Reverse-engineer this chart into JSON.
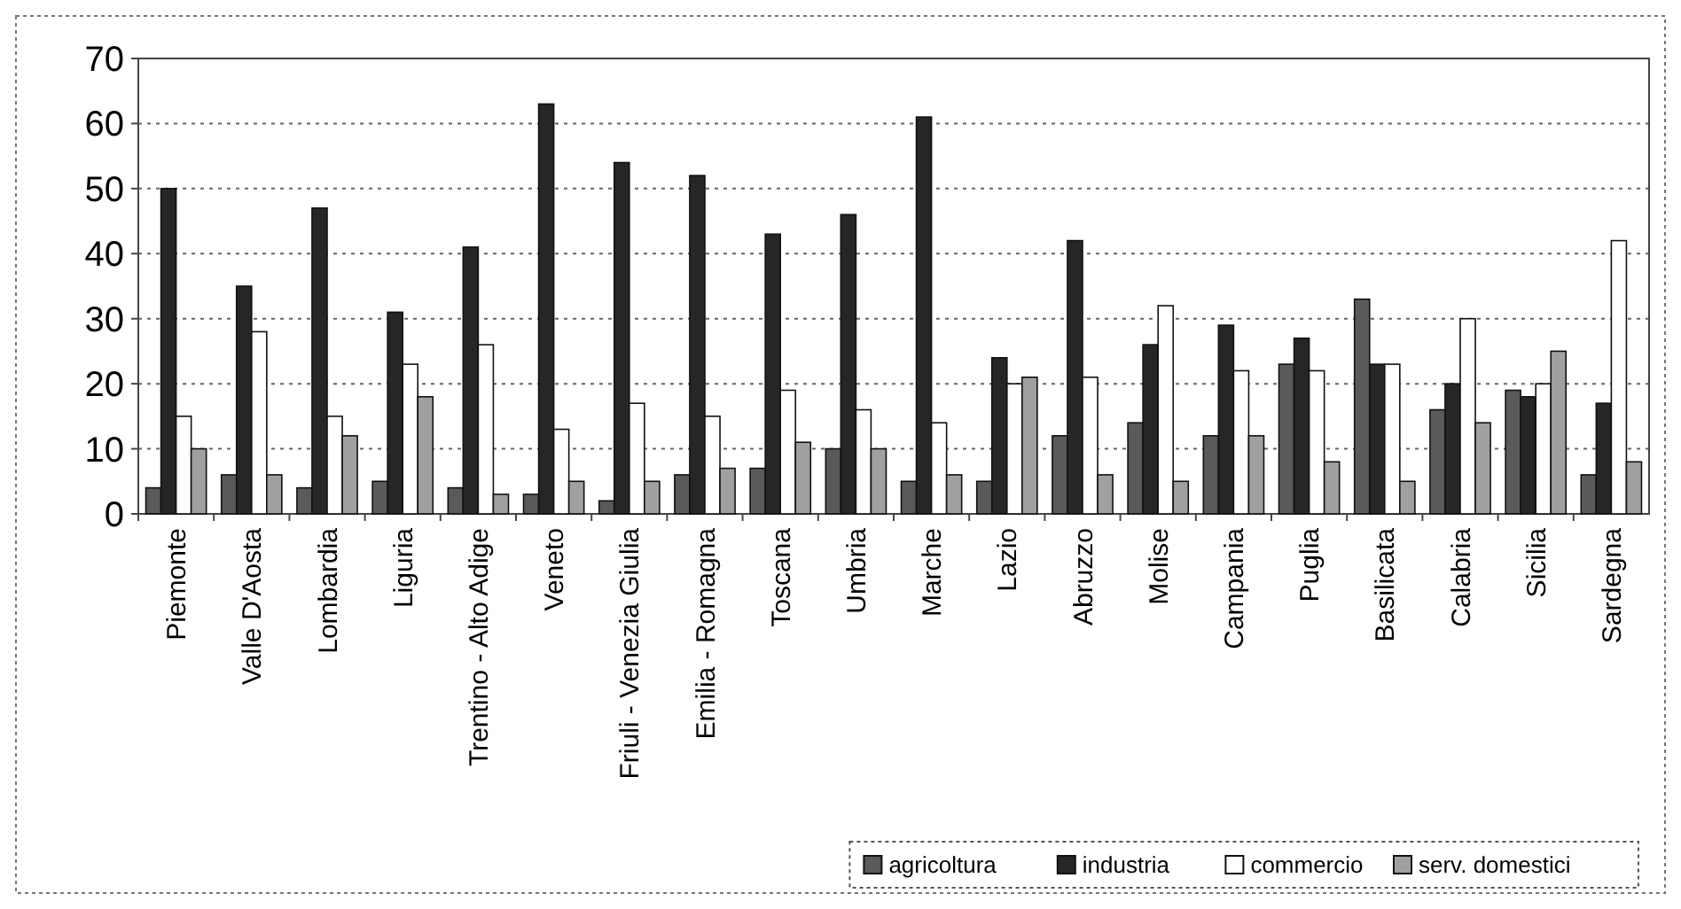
{
  "chart_data": {
    "type": "bar",
    "categories": [
      "Piemonte",
      "Valle D'Aosta",
      "Lombardia",
      "Liguria",
      "Trentino - Alto Adige",
      "Veneto",
      "Friuli - Venezia Giulia",
      "Emilia - Romagna",
      "Toscana",
      "Umbria",
      "Marche",
      "Lazio",
      "Abruzzo",
      "Molise",
      "Campania",
      "Puglia",
      "Basilicata",
      "Calabria",
      "Sicilia",
      "Sardegna"
    ],
    "series": [
      {
        "name": "agricoltura",
        "color": "#5a5a5a",
        "values": [
          4,
          6,
          4,
          5,
          4,
          3,
          2,
          6,
          7,
          10,
          5,
          5,
          12,
          14,
          12,
          23,
          33,
          16,
          19,
          6
        ]
      },
      {
        "name": "industria",
        "color": "#262626",
        "values": [
          50,
          35,
          47,
          31,
          41,
          63,
          54,
          52,
          43,
          46,
          61,
          24,
          42,
          26,
          29,
          27,
          23,
          20,
          18,
          17
        ]
      },
      {
        "name": "commercio",
        "color": "#ffffff",
        "values": [
          15,
          28,
          15,
          23,
          26,
          13,
          17,
          15,
          19,
          16,
          14,
          20,
          21,
          32,
          22,
          22,
          23,
          30,
          20,
          42
        ]
      },
      {
        "name": "serv. domestici",
        "color": "#a0a0a0",
        "values": [
          10,
          6,
          12,
          18,
          3,
          5,
          5,
          7,
          11,
          10,
          6,
          21,
          6,
          5,
          12,
          8,
          5,
          14,
          25,
          8
        ]
      }
    ],
    "ylim": [
      0,
      70
    ],
    "yticks": [
      0,
      10,
      20,
      30,
      40,
      50,
      60,
      70
    ],
    "grid": "y",
    "legend": "bottom right"
  }
}
